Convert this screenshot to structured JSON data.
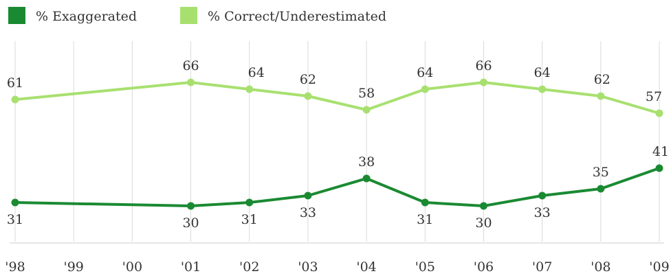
{
  "chart_data": {
    "type": "line",
    "categories": [
      "'98",
      "'99",
      "'00",
      "'01",
      "'02",
      "'03",
      "'04",
      "'05",
      "'06",
      "'07",
      "'08",
      "'09"
    ],
    "x": [
      1998,
      2001,
      2002,
      2003,
      2004,
      2005,
      2006,
      2007,
      2008,
      2009
    ],
    "series": [
      {
        "name": "% Exaggerated",
        "color": "#1a8a32",
        "values": [
          31,
          30,
          31,
          33,
          38,
          31,
          30,
          33,
          35,
          41
        ],
        "labels": [
          "31",
          "30",
          "31",
          "33",
          "38",
          "31",
          "30",
          "33",
          "35",
          "41"
        ]
      },
      {
        "name": "% Correct/Underestimated",
        "color": "#a8e070",
        "values": [
          61,
          66,
          64,
          62,
          58,
          64,
          66,
          64,
          62,
          57
        ],
        "labels": [
          "61",
          "66",
          "64",
          "62",
          "58",
          "64",
          "66",
          "64",
          "62",
          "57"
        ]
      }
    ],
    "xlim": [
      1998,
      2009
    ],
    "ylim": [
      20,
      70
    ],
    "grid": "vertical",
    "legend_position": "top-left"
  }
}
